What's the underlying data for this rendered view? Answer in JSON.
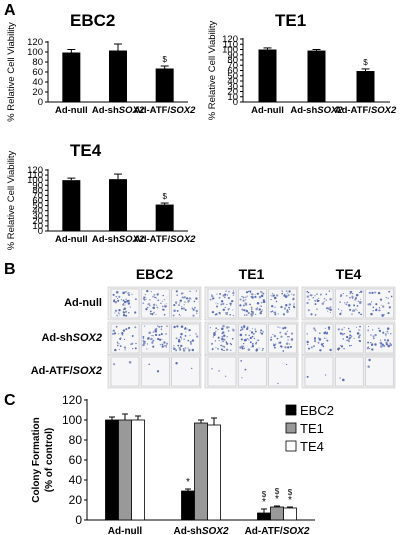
{
  "panels": {
    "a": "A",
    "b": "B",
    "c": "C"
  },
  "chart_data": [
    {
      "type": "bar",
      "title": "EBC2",
      "ylabel": "% Relative Cell Viability",
      "categories": [
        "Ad-null",
        "Ad-shSOX2",
        "Ad-ATF/SOX2"
      ],
      "category_parts": [
        [
          "Ad-null",
          ""
        ],
        [
          "Ad-sh",
          "SOX2"
        ],
        [
          "Ad-ATF/",
          "SOX2"
        ]
      ],
      "values": [
        99,
        103,
        67
      ],
      "errors": [
        6,
        13,
        5
      ],
      "annotations": [
        "",
        "",
        "$"
      ],
      "ylim": [
        0,
        120
      ],
      "yticks": [
        0,
        20,
        40,
        60,
        80,
        100,
        120
      ],
      "bar_color": "#000000"
    },
    {
      "type": "bar",
      "title": "TE1",
      "ylabel": "% Relative Cell Viability",
      "categories": [
        "Ad-null",
        "Ad-shSOX2",
        "Ad-ATF/SOX2"
      ],
      "category_parts": [
        [
          "Ad-null",
          ""
        ],
        [
          "Ad-sh",
          "SOX2"
        ],
        [
          "Ad-ATF/",
          "SOX2"
        ]
      ],
      "values": [
        100,
        98,
        59
      ],
      "errors": [
        3,
        2,
        4
      ],
      "annotations": [
        "",
        "",
        "$"
      ],
      "ylim": [
        0,
        120
      ],
      "yticks": [
        0,
        10,
        20,
        30,
        40,
        50,
        60,
        70,
        80,
        90,
        100,
        110,
        120
      ],
      "bar_color": "#000000"
    },
    {
      "type": "bar",
      "title": "TE4",
      "ylabel": "% Relative Cell Viability",
      "categories": [
        "Ad-null",
        "Ad-shSOX2",
        "Ad-ATF/SOX2"
      ],
      "category_parts": [
        [
          "Ad-null",
          ""
        ],
        [
          "Ad-sh",
          "SOX2"
        ],
        [
          "Ad-ATF/",
          "SOX2"
        ]
      ],
      "values": [
        100,
        102,
        52
      ],
      "errors": [
        4,
        10,
        3
      ],
      "annotations": [
        "",
        "",
        "$"
      ],
      "ylim": [
        0,
        120
      ],
      "yticks": [
        0,
        10,
        20,
        30,
        40,
        50,
        60,
        70,
        80,
        90,
        100,
        110,
        120
      ],
      "bar_color": "#000000"
    },
    {
      "type": "bar",
      "title": "",
      "ylabel": "Colony Formation",
      "ylabel2": "(% of control)",
      "categories": [
        "Ad-null",
        "Ad-shSOX2",
        "Ad-ATF/SOX2"
      ],
      "category_parts": [
        [
          "Ad-null",
          ""
        ],
        [
          "Ad-sh",
          "SOX2"
        ],
        [
          "Ad-ATF/",
          "SOX2"
        ]
      ],
      "ylim": [
        0,
        120
      ],
      "yticks": [
        0,
        20,
        40,
        60,
        80,
        100,
        120
      ],
      "legend_position": "top-right",
      "series": [
        {
          "name": "EBC2",
          "color": "#000000",
          "values": [
            100,
            29,
            7
          ],
          "errors": [
            3,
            2,
            4
          ],
          "annotations": [
            "",
            "*",
            "$\n*"
          ]
        },
        {
          "name": "TE1",
          "color": "#999999",
          "values": [
            100,
            97,
            13
          ],
          "errors": [
            6,
            3,
            1
          ],
          "annotations": [
            "",
            "",
            "$\n*"
          ]
        },
        {
          "name": "TE4",
          "color": "#ffffff",
          "values": [
            100,
            95,
            12
          ],
          "errors": [
            4,
            7,
            1
          ],
          "annotations": [
            "",
            "",
            "$\n*"
          ]
        }
      ]
    }
  ],
  "colony_panel": {
    "columns": [
      "EBC2",
      "TE1",
      "TE4"
    ],
    "rows": [
      [
        "Ad-null",
        ""
      ],
      [
        "Ad-sh",
        "SOX2"
      ],
      [
        "Ad-ATF/",
        "SOX2"
      ]
    ],
    "densities": [
      [
        [
          0.55,
          0.5,
          0.45
        ],
        [
          0.5,
          0.65,
          0.5
        ],
        [
          0.4,
          0.45,
          0.35
        ]
      ],
      [
        [
          0.35,
          0.5,
          0.45
        ],
        [
          0.5,
          0.6,
          0.4
        ],
        [
          0.35,
          0.4,
          0.45
        ]
      ],
      [
        [
          0.02,
          0.02,
          0.02
        ],
        [
          0.03,
          0.03,
          0.02
        ],
        [
          0.02,
          0.02,
          0.02
        ]
      ]
    ]
  }
}
